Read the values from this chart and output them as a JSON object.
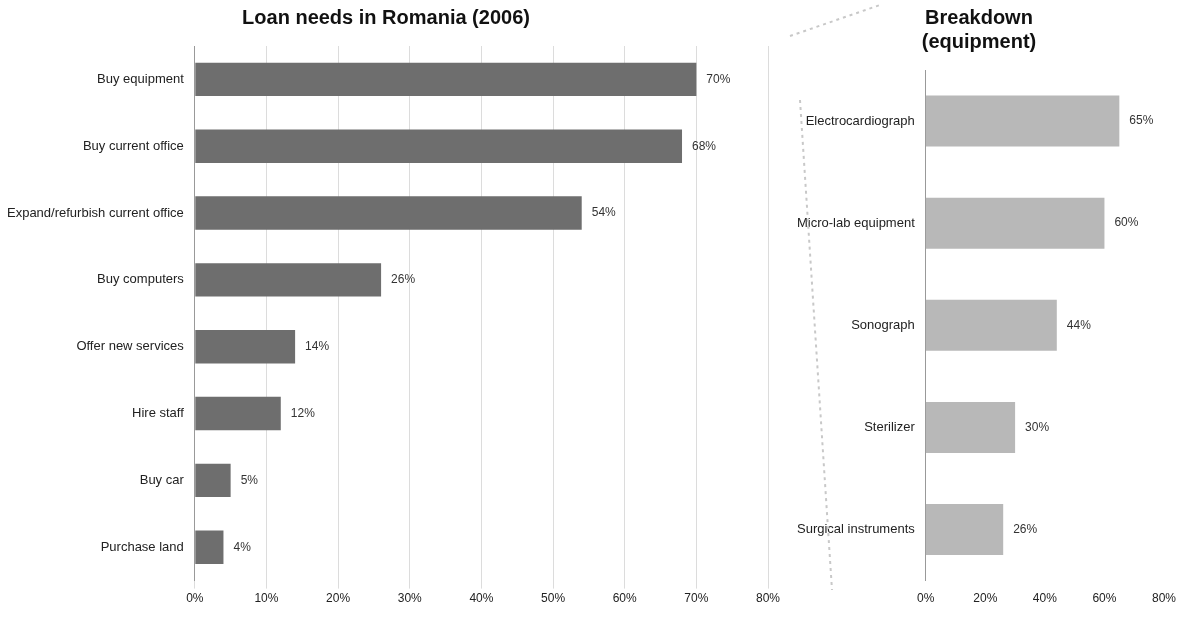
{
  "chart_data": [
    {
      "type": "bar",
      "orientation": "horizontal",
      "title": "Loan needs in Romania (2006)",
      "categories": [
        "Buy equipment",
        "Buy current office",
        "Expand/refurbish current office",
        "Buy computers",
        "Offer new services",
        "Hire staff",
        "Buy car",
        "Purchase land"
      ],
      "values": [
        70,
        68,
        54,
        26,
        14,
        12,
        5,
        4
      ],
      "value_labels": [
        "70%",
        "68%",
        "54%",
        "26%",
        "14%",
        "12%",
        "5%",
        "4%"
      ],
      "color": "#6e6e6e",
      "xlim": [
        0,
        80
      ],
      "xticks": [
        {
          "value": 0,
          "label": "0%"
        },
        {
          "value": 10,
          "label": "10%"
        },
        {
          "value": 20,
          "label": "20%"
        },
        {
          "value": 30,
          "label": "30%"
        },
        {
          "value": 40,
          "label": "40%"
        },
        {
          "value": 50,
          "label": "50%"
        },
        {
          "value": 60,
          "label": "60%"
        },
        {
          "value": 70,
          "label": "70%"
        },
        {
          "value": 80,
          "label": "80%"
        }
      ],
      "grid": "x"
    },
    {
      "type": "bar",
      "orientation": "horizontal",
      "title": "Breakdown (equipment)",
      "categories": [
        "Electrocardiograph",
        "Micro-lab equipment",
        "Sonograph",
        "Sterilizer",
        "Surgical instruments"
      ],
      "values": [
        65,
        60,
        44,
        30,
        26
      ],
      "value_labels": [
        "65%",
        "60%",
        "44%",
        "30%",
        "26%"
      ],
      "color": "#b8b8b8",
      "xlim": [
        0,
        80
      ],
      "xticks": [
        {
          "value": 0,
          "label": "0%"
        },
        {
          "value": 20,
          "label": "20%"
        },
        {
          "value": 40,
          "label": "40%"
        },
        {
          "value": 60,
          "label": "60%"
        },
        {
          "value": 80,
          "label": "80%"
        }
      ]
    }
  ]
}
